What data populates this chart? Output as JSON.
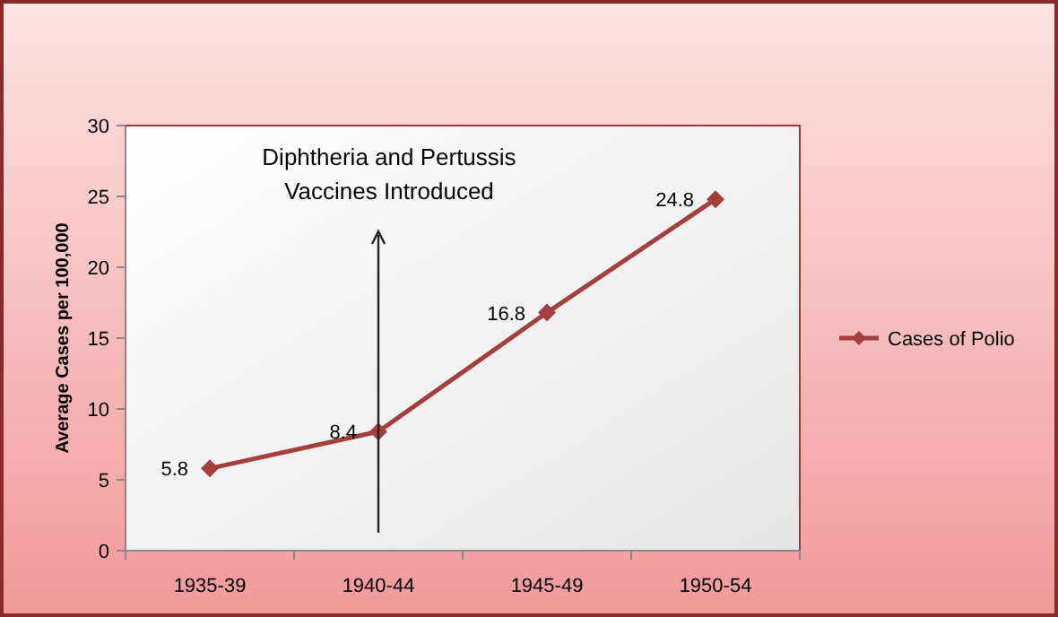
{
  "chart_data": {
    "type": "line",
    "ylabel": "Average Cases  per 100,000",
    "categories": [
      "1935-39",
      "1940-44",
      "1945-49",
      "1950-54"
    ],
    "series": [
      {
        "name": "Cases of Polio",
        "color": "#a33f3c",
        "values": [
          5.8,
          8.4,
          16.8,
          24.8
        ]
      }
    ],
    "ylim": [
      0,
      30
    ],
    "yticks": [
      0,
      5,
      10,
      15,
      20,
      25,
      30
    ],
    "data_labels": true,
    "marker": "diamond",
    "legend": "right",
    "annotations": [
      "Diphtheria and Pertussis Vaccines Introduced"
    ]
  }
}
